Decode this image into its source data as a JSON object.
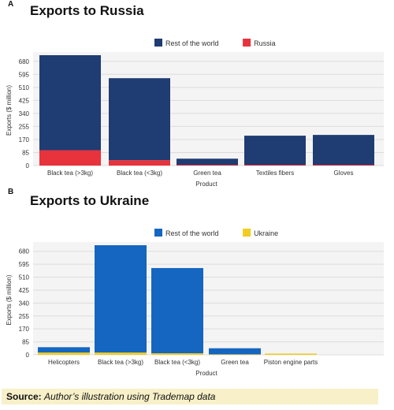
{
  "source": {
    "label": "Source:",
    "text": "Author’s illustration using Trademap data"
  },
  "chart_data": [
    {
      "type": "bar",
      "stacked": true,
      "panel": "A",
      "title": "Exports to Russia",
      "xlabel": "Product",
      "ylabel": "Exports ($ million)",
      "yticks": [
        0,
        85,
        170,
        255,
        340,
        425,
        510,
        595,
        680
      ],
      "ylim": [
        0,
        720
      ],
      "grid": true,
      "legend_position": "top",
      "categories": [
        "Black tea (>3kg)",
        "Black tea (<3kg)",
        "Green tea",
        "Textiles fibers",
        "Gloves"
      ],
      "series": [
        {
          "name": "Russia",
          "color": "#e8323c",
          "values": [
            100,
            35,
            5,
            5,
            5
          ]
        },
        {
          "name": "Rest of the world",
          "color": "#1f3c73",
          "values": [
            620,
            535,
            40,
            190,
            195
          ]
        }
      ],
      "legend_order": [
        "Rest of the world",
        "Russia"
      ]
    },
    {
      "type": "bar",
      "stacked": true,
      "panel": "B",
      "title": "Exports to Ukraine",
      "xlabel": "Product",
      "ylabel": "Exports ($ million)",
      "yticks": [
        0,
        85,
        170,
        255,
        340,
        425,
        510,
        595,
        680
      ],
      "ylim": [
        0,
        720
      ],
      "grid": true,
      "legend_position": "top",
      "categories": [
        "Helicopters",
        "Black tea (>3kg)",
        "Black tea (<3kg)",
        "Green tea",
        "Piston engine parts"
      ],
      "series": [
        {
          "name": "Ukraine",
          "color": "#f2cc1f",
          "values": [
            15,
            15,
            10,
            3,
            8
          ]
        },
        {
          "name": "Rest of the world",
          "color": "#1566c0",
          "values": [
            35,
            705,
            560,
            40,
            0
          ]
        }
      ],
      "legend_order": [
        "Rest of the world",
        "Ukraine"
      ]
    }
  ]
}
